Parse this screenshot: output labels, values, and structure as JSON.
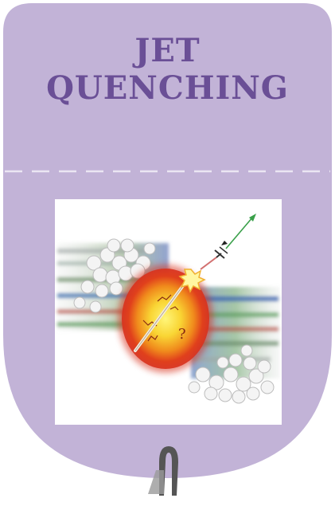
{
  "badge": {
    "title_line1": "JET",
    "title_line2": "QUENCHING",
    "colors": {
      "badge_fill": "#c2b3d7",
      "title_text": "#6a4f96",
      "dashed_line": "#ebe6f2",
      "hanger": "#555555"
    }
  },
  "illustration": {
    "question_mark": "?",
    "icons": [
      "jet-particle-arrow-icon",
      "collision-flash-icon",
      "fireball-icon",
      "ion-cloud-icon"
    ]
  }
}
